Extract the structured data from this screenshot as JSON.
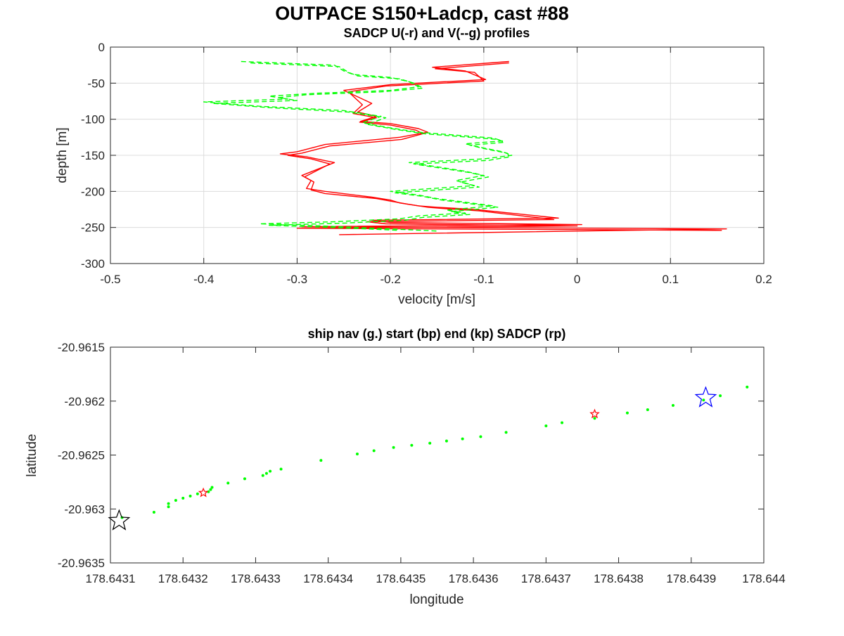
{
  "figure": {
    "title": "OUTPACE S150+Ladcp, cast #88"
  },
  "chart_data": [
    {
      "type": "line",
      "title": "SADCP U(-r) and V(--g) profiles",
      "xlabel": "velocity [m/s]",
      "ylabel": "depth [m]",
      "xlim": [
        -0.5,
        0.2
      ],
      "ylim": [
        -300,
        0
      ],
      "xticks": [
        -0.5,
        -0.4,
        -0.3,
        -0.2,
        -0.1,
        0,
        0.1,
        0.2
      ],
      "xtick_labels": [
        "-0.5",
        "-0.4",
        "-0.3",
        "-0.2",
        "-0.1",
        "0",
        "0.1",
        "0.2"
      ],
      "yticks": [
        0,
        -50,
        -100,
        -150,
        -200,
        -250,
        -300
      ],
      "ytick_labels": [
        "0",
        "-50",
        "-100",
        "-150",
        "-200",
        "-250",
        "-300"
      ],
      "grid": true,
      "series": [
        {
          "color": "#ff0000",
          "dash": "solid",
          "x": [
            -0.073,
            -0.155,
            -0.12,
            -0.098,
            -0.2,
            -0.25,
            -0.22,
            -0.235,
            -0.215,
            -0.232,
            -0.2,
            -0.17,
            -0.16,
            -0.19,
            -0.27,
            -0.3,
            -0.318,
            -0.29,
            -0.26,
            -0.295,
            -0.285,
            -0.29,
            -0.27,
            -0.22,
            -0.2,
            -0.19,
            -0.17,
            -0.15,
            -0.11,
            -0.02,
            -0.22,
            -0.2,
            0.005,
            -0.295,
            0.16,
            -0.255
          ],
          "y": [
            -20,
            -28,
            -33,
            -45,
            -52,
            -60,
            -78,
            -90,
            -96,
            -103,
            -106,
            -113,
            -118,
            -125,
            -135,
            -145,
            -148,
            -152,
            -160,
            -178,
            -185,
            -196,
            -200,
            -208,
            -212,
            -216,
            -220,
            -222,
            -225,
            -237,
            -240,
            -243,
            -246,
            -249,
            -252,
            -260
          ]
        },
        {
          "color": "#ff0000",
          "dash": "solid",
          "x": [
            -0.073,
            -0.152,
            -0.11,
            -0.1,
            -0.205,
            -0.245,
            -0.23,
            -0.24,
            -0.215,
            -0.233,
            -0.2,
            -0.173,
            -0.165,
            -0.188,
            -0.265,
            -0.295,
            -0.31,
            -0.285,
            -0.265,
            -0.292,
            -0.282,
            -0.285,
            -0.27,
            -0.215,
            -0.198,
            -0.18,
            -0.16,
            -0.14,
            -0.105,
            -0.025,
            -0.225,
            -0.205,
            0.0,
            -0.3,
            0.155
          ],
          "y": [
            -22,
            -30,
            -35,
            -47,
            -54,
            -62,
            -80,
            -92,
            -98,
            -104,
            -108,
            -115,
            -120,
            -128,
            -137,
            -147,
            -150,
            -155,
            -162,
            -180,
            -187,
            -198,
            -203,
            -210,
            -214,
            -218,
            -222,
            -224,
            -227,
            -239,
            -242,
            -245,
            -248,
            -251,
            -254
          ]
        },
        {
          "color": "#00ff00",
          "dash": "dashed",
          "x": [
            -0.36,
            -0.26,
            -0.25,
            -0.24,
            -0.2,
            -0.18,
            -0.17,
            -0.2,
            -0.28,
            -0.33,
            -0.31,
            -0.4,
            -0.34,
            -0.25,
            -0.21,
            -0.23,
            -0.2,
            -0.17,
            -0.13,
            -0.09,
            -0.08,
            -0.12,
            -0.1,
            -0.08,
            -0.07,
            -0.1,
            -0.18,
            -0.15,
            -0.12,
            -0.1,
            -0.13,
            -0.11,
            -0.2,
            -0.17,
            -0.15,
            -0.12,
            -0.09,
            -0.14,
            -0.12,
            -0.17,
            -0.19,
            -0.26,
            -0.34,
            -0.27,
            -0.2,
            -0.15
          ],
          "y": [
            -20,
            -25,
            -33,
            -38,
            -42,
            -48,
            -55,
            -60,
            -64,
            -68,
            -72,
            -76,
            -82,
            -88,
            -96,
            -105,
            -112,
            -118,
            -122,
            -126,
            -130,
            -134,
            -140,
            -145,
            -150,
            -155,
            -160,
            -166,
            -172,
            -178,
            -185,
            -192,
            -200,
            -205,
            -210,
            -215,
            -220,
            -226,
            -230,
            -234,
            -238,
            -242,
            -245,
            -248,
            -252,
            -255
          ]
        },
        {
          "color": "#00ff00",
          "dash": "dashed",
          "x": [
            -0.35,
            -0.255,
            -0.245,
            -0.235,
            -0.19,
            -0.175,
            -0.165,
            -0.21,
            -0.29,
            -0.32,
            -0.3,
            -0.39,
            -0.33,
            -0.245,
            -0.205,
            -0.225,
            -0.195,
            -0.165,
            -0.125,
            -0.085,
            -0.078,
            -0.115,
            -0.095,
            -0.075,
            -0.072,
            -0.095,
            -0.175,
            -0.145,
            -0.115,
            -0.095,
            -0.125,
            -0.105,
            -0.195,
            -0.165,
            -0.145,
            -0.115,
            -0.085,
            -0.135,
            -0.115,
            -0.165,
            -0.185,
            -0.25,
            -0.33,
            -0.26,
            -0.19
          ],
          "y": [
            -22,
            -27,
            -35,
            -40,
            -44,
            -50,
            -57,
            -62,
            -66,
            -70,
            -74,
            -78,
            -84,
            -90,
            -98,
            -107,
            -114,
            -120,
            -124,
            -128,
            -132,
            -136,
            -142,
            -147,
            -152,
            -157,
            -162,
            -168,
            -174,
            -180,
            -187,
            -194,
            -202,
            -207,
            -212,
            -217,
            -222,
            -228,
            -232,
            -236,
            -240,
            -244,
            -247,
            -250,
            -254
          ]
        }
      ]
    },
    {
      "type": "scatter",
      "title": "ship nav (g.) start (bp) end (kp) SADCP (rp)",
      "xlabel": "longitude",
      "ylabel": "latitude",
      "xlim": [
        178.6431,
        178.644
      ],
      "ylim": [
        -20.9635,
        -20.9615
      ],
      "xticks": [
        178.6431,
        178.6432,
        178.6433,
        178.6434,
        178.6435,
        178.6436,
        178.6437,
        178.6438,
        178.6439,
        178.644
      ],
      "xtick_labels": [
        "178.6431",
        "178.6432",
        "178.6433",
        "178.6434",
        "178.6435",
        "178.6436",
        "178.6437",
        "178.6438",
        "178.6439",
        "178.644"
      ],
      "yticks": [
        -20.9615,
        -20.962,
        -20.9625,
        -20.963,
        -20.9635
      ],
      "ytick_labels": [
        "-20.9615",
        "-20.962",
        "-20.9625",
        "-20.963",
        "-20.9635"
      ],
      "grid": false,
      "ship_nav": {
        "color": "#00ff00",
        "points": [
          [
            178.643116,
            -20.96308
          ],
          [
            178.64316,
            -20.96303
          ],
          [
            178.64318,
            -20.96298
          ],
          [
            178.64318,
            -20.96295
          ],
          [
            178.64319,
            -20.96292
          ],
          [
            178.6432,
            -20.9629
          ],
          [
            178.64321,
            -20.96288
          ],
          [
            178.64322,
            -20.96286
          ],
          [
            178.643235,
            -20.96284
          ],
          [
            178.643238,
            -20.96282
          ],
          [
            178.64324,
            -20.9628
          ],
          [
            178.643262,
            -20.96276
          ],
          [
            178.643285,
            -20.96272
          ],
          [
            178.64331,
            -20.96269
          ],
          [
            178.643315,
            -20.96267
          ],
          [
            178.64332,
            -20.96265
          ],
          [
            178.643335,
            -20.96263
          ],
          [
            178.64339,
            -20.96255
          ],
          [
            178.64344,
            -20.96249
          ],
          [
            178.643463,
            -20.96246
          ],
          [
            178.64349,
            -20.96243
          ],
          [
            178.643515,
            -20.96241
          ],
          [
            178.64354,
            -20.96239
          ],
          [
            178.643563,
            -20.96237
          ],
          [
            178.643585,
            -20.96235
          ],
          [
            178.64361,
            -20.96233
          ],
          [
            178.643645,
            -20.96229
          ],
          [
            178.6437,
            -20.96223
          ],
          [
            178.643722,
            -20.9622
          ],
          [
            178.643767,
            -20.96216
          ],
          [
            178.643812,
            -20.96211
          ],
          [
            178.64384,
            -20.96208
          ],
          [
            178.643875,
            -20.96204
          ],
          [
            178.643917,
            -20.96199
          ],
          [
            178.64394,
            -20.96195
          ],
          [
            178.643977,
            -20.96187
          ]
        ]
      },
      "start": {
        "color": "#0000ff",
        "point": [
          178.64392,
          -20.96197
        ]
      },
      "end": {
        "color": "#000000",
        "point": [
          178.643112,
          -20.96311
        ]
      },
      "sadcp": {
        "color": "#ff0000",
        "points": [
          [
            178.643228,
            -20.96285
          ],
          [
            178.643767,
            -20.96212
          ]
        ]
      }
    }
  ]
}
